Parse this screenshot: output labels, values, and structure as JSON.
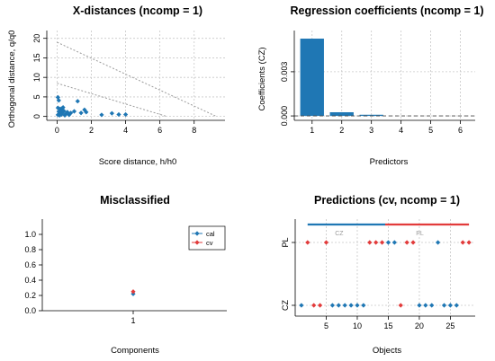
{
  "colors": {
    "blue": "#1f77b4",
    "red": "#e23b3b",
    "grid": "#c8c8c8",
    "dashed": "#9a9a9a"
  },
  "chart_data": [
    {
      "type": "scatter",
      "title": "X-distances (ncomp = 1)",
      "xlabel": "Score distance, h/h0",
      "ylabel": "Orthogonal distance, q/q0",
      "xlim": [
        -0.6,
        9.8
      ],
      "ylim": [
        -1,
        22
      ],
      "xticks": [
        0,
        2,
        4,
        6,
        8
      ],
      "yticks": [
        0,
        5,
        10,
        15,
        20
      ],
      "grid": true,
      "points": [
        [
          0.05,
          4.9
        ],
        [
          0.1,
          4.1
        ],
        [
          0.05,
          2.2
        ],
        [
          0.15,
          1.9
        ],
        [
          0.25,
          2.0
        ],
        [
          0.3,
          1.6
        ],
        [
          0.35,
          2.3
        ],
        [
          0.1,
          1.2
        ],
        [
          0.2,
          1.0
        ],
        [
          0.3,
          0.9
        ],
        [
          0.4,
          1.4
        ],
        [
          0.5,
          0.6
        ],
        [
          0.6,
          1.1
        ],
        [
          0.05,
          0.4
        ],
        [
          0.15,
          0.3
        ],
        [
          0.25,
          0.5
        ],
        [
          0.45,
          0.3
        ],
        [
          0.7,
          0.4
        ],
        [
          0.8,
          0.9
        ],
        [
          1.0,
          1.3
        ],
        [
          1.2,
          3.9
        ],
        [
          1.4,
          0.9
        ],
        [
          1.6,
          1.7
        ],
        [
          1.7,
          1.1
        ],
        [
          2.6,
          0.4
        ],
        [
          3.2,
          0.8
        ],
        [
          3.6,
          0.5
        ],
        [
          4.0,
          0.5
        ]
      ],
      "limit_lines": [
        {
          "x": [
            0,
            9.3
          ],
          "y": [
            19,
            0
          ]
        },
        {
          "x": [
            0,
            6.4
          ],
          "y": [
            8.5,
            0
          ]
        }
      ]
    },
    {
      "type": "bar",
      "title": "Regression coefficients (ncomp = 1)",
      "xlabel": "Predictors",
      "ylabel": "Coefficients (CZ)",
      "categories": [
        1,
        2,
        3
      ],
      "values": [
        0.00525,
        0.00025,
        8e-05
      ],
      "xlim": [
        0.4,
        6.5
      ],
      "ylim": [
        -0.0003,
        0.0058
      ],
      "xticks": [
        1,
        2,
        3,
        4,
        5,
        6
      ],
      "yticks": [
        0.0,
        0.003
      ],
      "ytick_labels": [
        "0.000",
        "0.003"
      ],
      "grid": true
    },
    {
      "type": "line",
      "title": "Misclassified",
      "xlabel": "Components",
      "ylabel": "",
      "categories": [
        "1"
      ],
      "ylim": [
        0,
        1.2
      ],
      "yticks": [
        0,
        0.2,
        0.4,
        0.6,
        0.8,
        1.0
      ],
      "ytick_labels": [
        "0.0",
        "0.2",
        "0.4",
        "0.6",
        "0.8",
        "1.0"
      ],
      "legend": "top-right",
      "series": [
        {
          "name": "cal",
          "values": [
            0.22
          ]
        },
        {
          "name": "cv",
          "values": [
            0.25
          ]
        }
      ]
    },
    {
      "type": "scatter",
      "title": "Predictions (cv, ncomp = 1)",
      "xlabel": "Objects",
      "ylabel": "",
      "xlim": [
        0,
        29
      ],
      "xticks": [
        5,
        10,
        15,
        20,
        25
      ],
      "yticks": [
        "CZ",
        "PL"
      ],
      "grid": true,
      "class_annotations": [
        {
          "label": "CZ",
          "x_range": [
            2,
            14.5
          ]
        },
        {
          "label": "PL",
          "x_range": [
            14.5,
            28
          ]
        }
      ],
      "points": [
        {
          "x": 2,
          "y": "PL",
          "c": "red"
        },
        {
          "x": 5,
          "y": "PL",
          "c": "red"
        },
        {
          "x": 12,
          "y": "PL",
          "c": "red"
        },
        {
          "x": 13,
          "y": "PL",
          "c": "red"
        },
        {
          "x": 14,
          "y": "PL",
          "c": "red"
        },
        {
          "x": 15,
          "y": "PL",
          "c": "blue"
        },
        {
          "x": 16,
          "y": "PL",
          "c": "blue"
        },
        {
          "x": 18,
          "y": "PL",
          "c": "red"
        },
        {
          "x": 19,
          "y": "PL",
          "c": "red"
        },
        {
          "x": 23,
          "y": "PL",
          "c": "blue"
        },
        {
          "x": 27,
          "y": "PL",
          "c": "red"
        },
        {
          "x": 28,
          "y": "PL",
          "c": "red"
        },
        {
          "x": 1,
          "y": "CZ",
          "c": "blue"
        },
        {
          "x": 3,
          "y": "CZ",
          "c": "red"
        },
        {
          "x": 4,
          "y": "CZ",
          "c": "red"
        },
        {
          "x": 6,
          "y": "CZ",
          "c": "blue"
        },
        {
          "x": 7,
          "y": "CZ",
          "c": "blue"
        },
        {
          "x": 8,
          "y": "CZ",
          "c": "blue"
        },
        {
          "x": 9,
          "y": "CZ",
          "c": "blue"
        },
        {
          "x": 10,
          "y": "CZ",
          "c": "blue"
        },
        {
          "x": 11,
          "y": "CZ",
          "c": "blue"
        },
        {
          "x": 17,
          "y": "CZ",
          "c": "red"
        },
        {
          "x": 20,
          "y": "CZ",
          "c": "blue"
        },
        {
          "x": 21,
          "y": "CZ",
          "c": "blue"
        },
        {
          "x": 22,
          "y": "CZ",
          "c": "blue"
        },
        {
          "x": 24,
          "y": "CZ",
          "c": "blue"
        },
        {
          "x": 25,
          "y": "CZ",
          "c": "blue"
        },
        {
          "x": 26,
          "y": "CZ",
          "c": "blue"
        }
      ]
    }
  ]
}
